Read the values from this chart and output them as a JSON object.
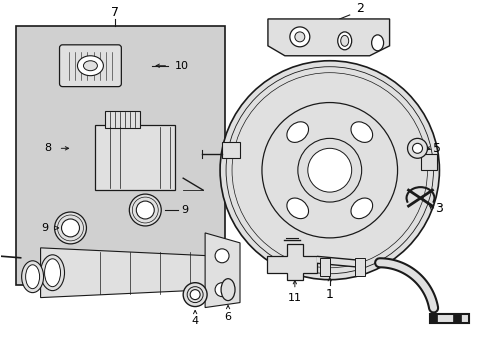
{
  "background_color": "#ffffff",
  "line_color": "#1a1a1a",
  "part_fill": "#e0e0e0",
  "box_fill": "#d0d0d0",
  "figsize": [
    4.89,
    3.6
  ],
  "dpi": 100
}
